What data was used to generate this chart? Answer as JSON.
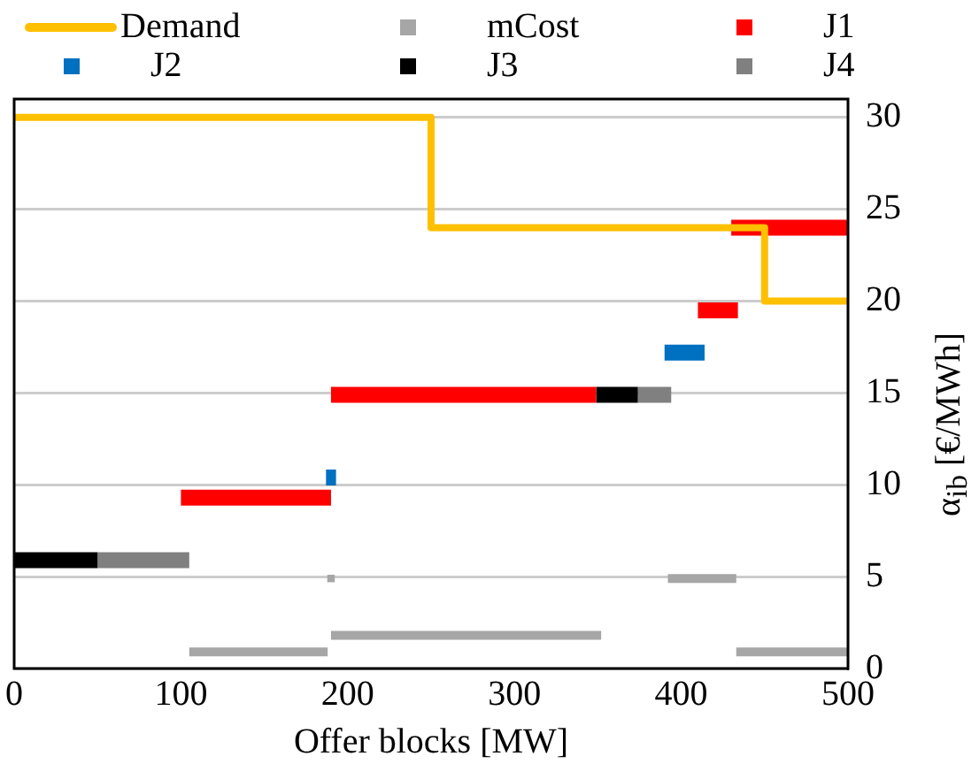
{
  "chart_data": {
    "type": "line",
    "xlabel": "Offer blocks [MW]",
    "ylabel": "α$_{ib}$ [€/MWh]",
    "xlim": [
      0,
      500
    ],
    "xticks": [
      0,
      100,
      200,
      300,
      400,
      500
    ],
    "ylim": [
      0,
      31
    ],
    "yticks": [
      0,
      5,
      10,
      15,
      20,
      25,
      30
    ],
    "grid": "y",
    "legend": "top",
    "marker": "none",
    "line_style": "solid",
    "series": [
      {
        "name": "Demand",
        "type": "step",
        "color": "#ffc000",
        "x": [
          0,
          250,
          450,
          500
        ],
        "values": [
          30,
          24,
          20,
          20
        ]
      },
      {
        "name": "mCost",
        "color": "#a6a6a6",
        "x": [
          105,
          188,
          null,
          190,
          352,
          null,
          392,
          433,
          null,
          433,
          500
        ],
        "values": [
          0.9,
          0.9,
          null,
          1.8,
          1.8,
          null,
          4.9,
          4.9,
          null,
          0.9,
          0.9
        ]
      },
      {
        "type": "scatter",
        "marker": "square",
        "color": "#a6a6a6",
        "x": [
          190
        ],
        "values": [
          4.9
        ]
      },
      {
        "name": "J1",
        "color": "#ff0000",
        "x": [
          100,
          190,
          null,
          190,
          349,
          null,
          410,
          434,
          null,
          430,
          500
        ],
        "values": [
          9.3,
          9.3,
          null,
          14.9,
          14.9,
          null,
          19.5,
          19.5,
          null,
          24,
          24
        ]
      },
      {
        "name": "J2",
        "color": "#0070c0",
        "x": [
          187,
          193,
          null,
          390,
          414
        ],
        "values": [
          10.4,
          10.4,
          null,
          17.2,
          17.2
        ]
      },
      {
        "name": "J3",
        "color": "#000000",
        "x": [
          0,
          50,
          null,
          349,
          374
        ],
        "values": [
          5.9,
          5.9,
          null,
          14.9,
          14.9
        ]
      },
      {
        "name": "J4",
        "color": "#808080",
        "x": [
          50,
          105,
          null,
          374,
          394
        ],
        "values": [
          5.9,
          5.9,
          null,
          14.9,
          14.9
        ]
      }
    ]
  }
}
